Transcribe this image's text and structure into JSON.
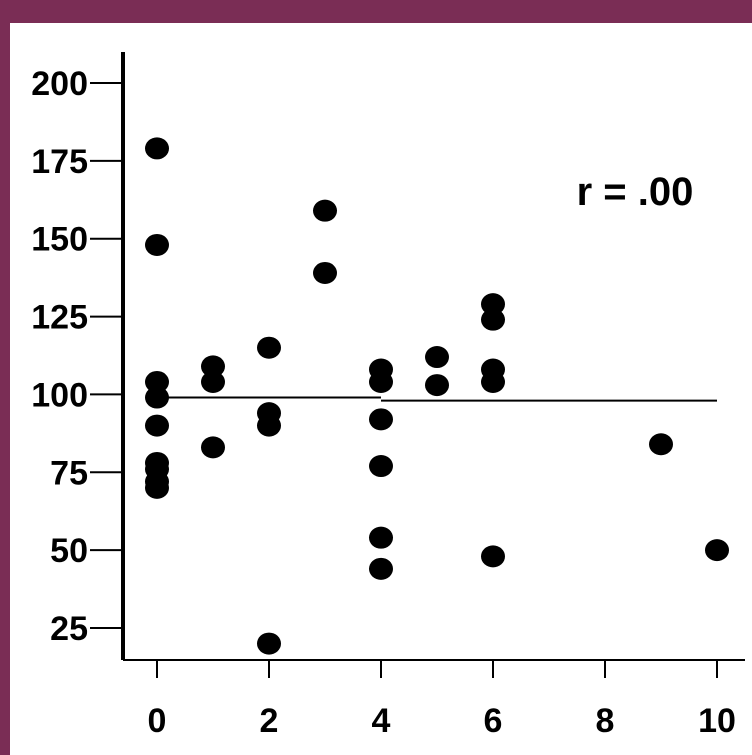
{
  "colors": {
    "border": "#7A2D55",
    "background": "#FFFFFF",
    "ink": "#000000"
  },
  "chart_data": {
    "type": "scatter",
    "title": "",
    "xlabel": "",
    "ylabel": "",
    "xlim": [
      0,
      10
    ],
    "ylim": [
      15,
      210
    ],
    "x_ticks": [
      0,
      2,
      4,
      6,
      8,
      10
    ],
    "x_tick_labels": [
      "0",
      "2",
      "4",
      "6",
      "8",
      "10"
    ],
    "y_ticks": [
      25,
      50,
      75,
      100,
      125,
      150,
      175,
      200
    ],
    "y_tick_labels": [
      "25",
      "50",
      "75",
      "100",
      "125",
      "150",
      "175",
      "200"
    ],
    "grid": false,
    "annotation": "r = .00",
    "regression_line": {
      "segments": [
        {
          "x": [
            0,
            4
          ],
          "y": [
            99,
            99
          ]
        },
        {
          "x": [
            4,
            10
          ],
          "y": [
            98,
            98
          ]
        }
      ]
    },
    "points": [
      {
        "x": 0,
        "y": 179
      },
      {
        "x": 0,
        "y": 148
      },
      {
        "x": 0,
        "y": 104
      },
      {
        "x": 0,
        "y": 99
      },
      {
        "x": 0,
        "y": 90
      },
      {
        "x": 0,
        "y": 78
      },
      {
        "x": 0,
        "y": 76
      },
      {
        "x": 0,
        "y": 72
      },
      {
        "x": 0,
        "y": 70
      },
      {
        "x": 1,
        "y": 109
      },
      {
        "x": 1,
        "y": 104
      },
      {
        "x": 1,
        "y": 83
      },
      {
        "x": 2,
        "y": 115
      },
      {
        "x": 2,
        "y": 94
      },
      {
        "x": 2,
        "y": 90
      },
      {
        "x": 2,
        "y": 20
      },
      {
        "x": 3,
        "y": 159
      },
      {
        "x": 3,
        "y": 139
      },
      {
        "x": 4,
        "y": 108
      },
      {
        "x": 4,
        "y": 104
      },
      {
        "x": 4,
        "y": 92
      },
      {
        "x": 4,
        "y": 77
      },
      {
        "x": 4,
        "y": 54
      },
      {
        "x": 4,
        "y": 44
      },
      {
        "x": 5,
        "y": 112
      },
      {
        "x": 5,
        "y": 103
      },
      {
        "x": 6,
        "y": 129
      },
      {
        "x": 6,
        "y": 124
      },
      {
        "x": 6,
        "y": 108
      },
      {
        "x": 6,
        "y": 104
      },
      {
        "x": 6,
        "y": 48
      },
      {
        "x": 9,
        "y": 84
      },
      {
        "x": 10,
        "y": 50
      }
    ]
  }
}
